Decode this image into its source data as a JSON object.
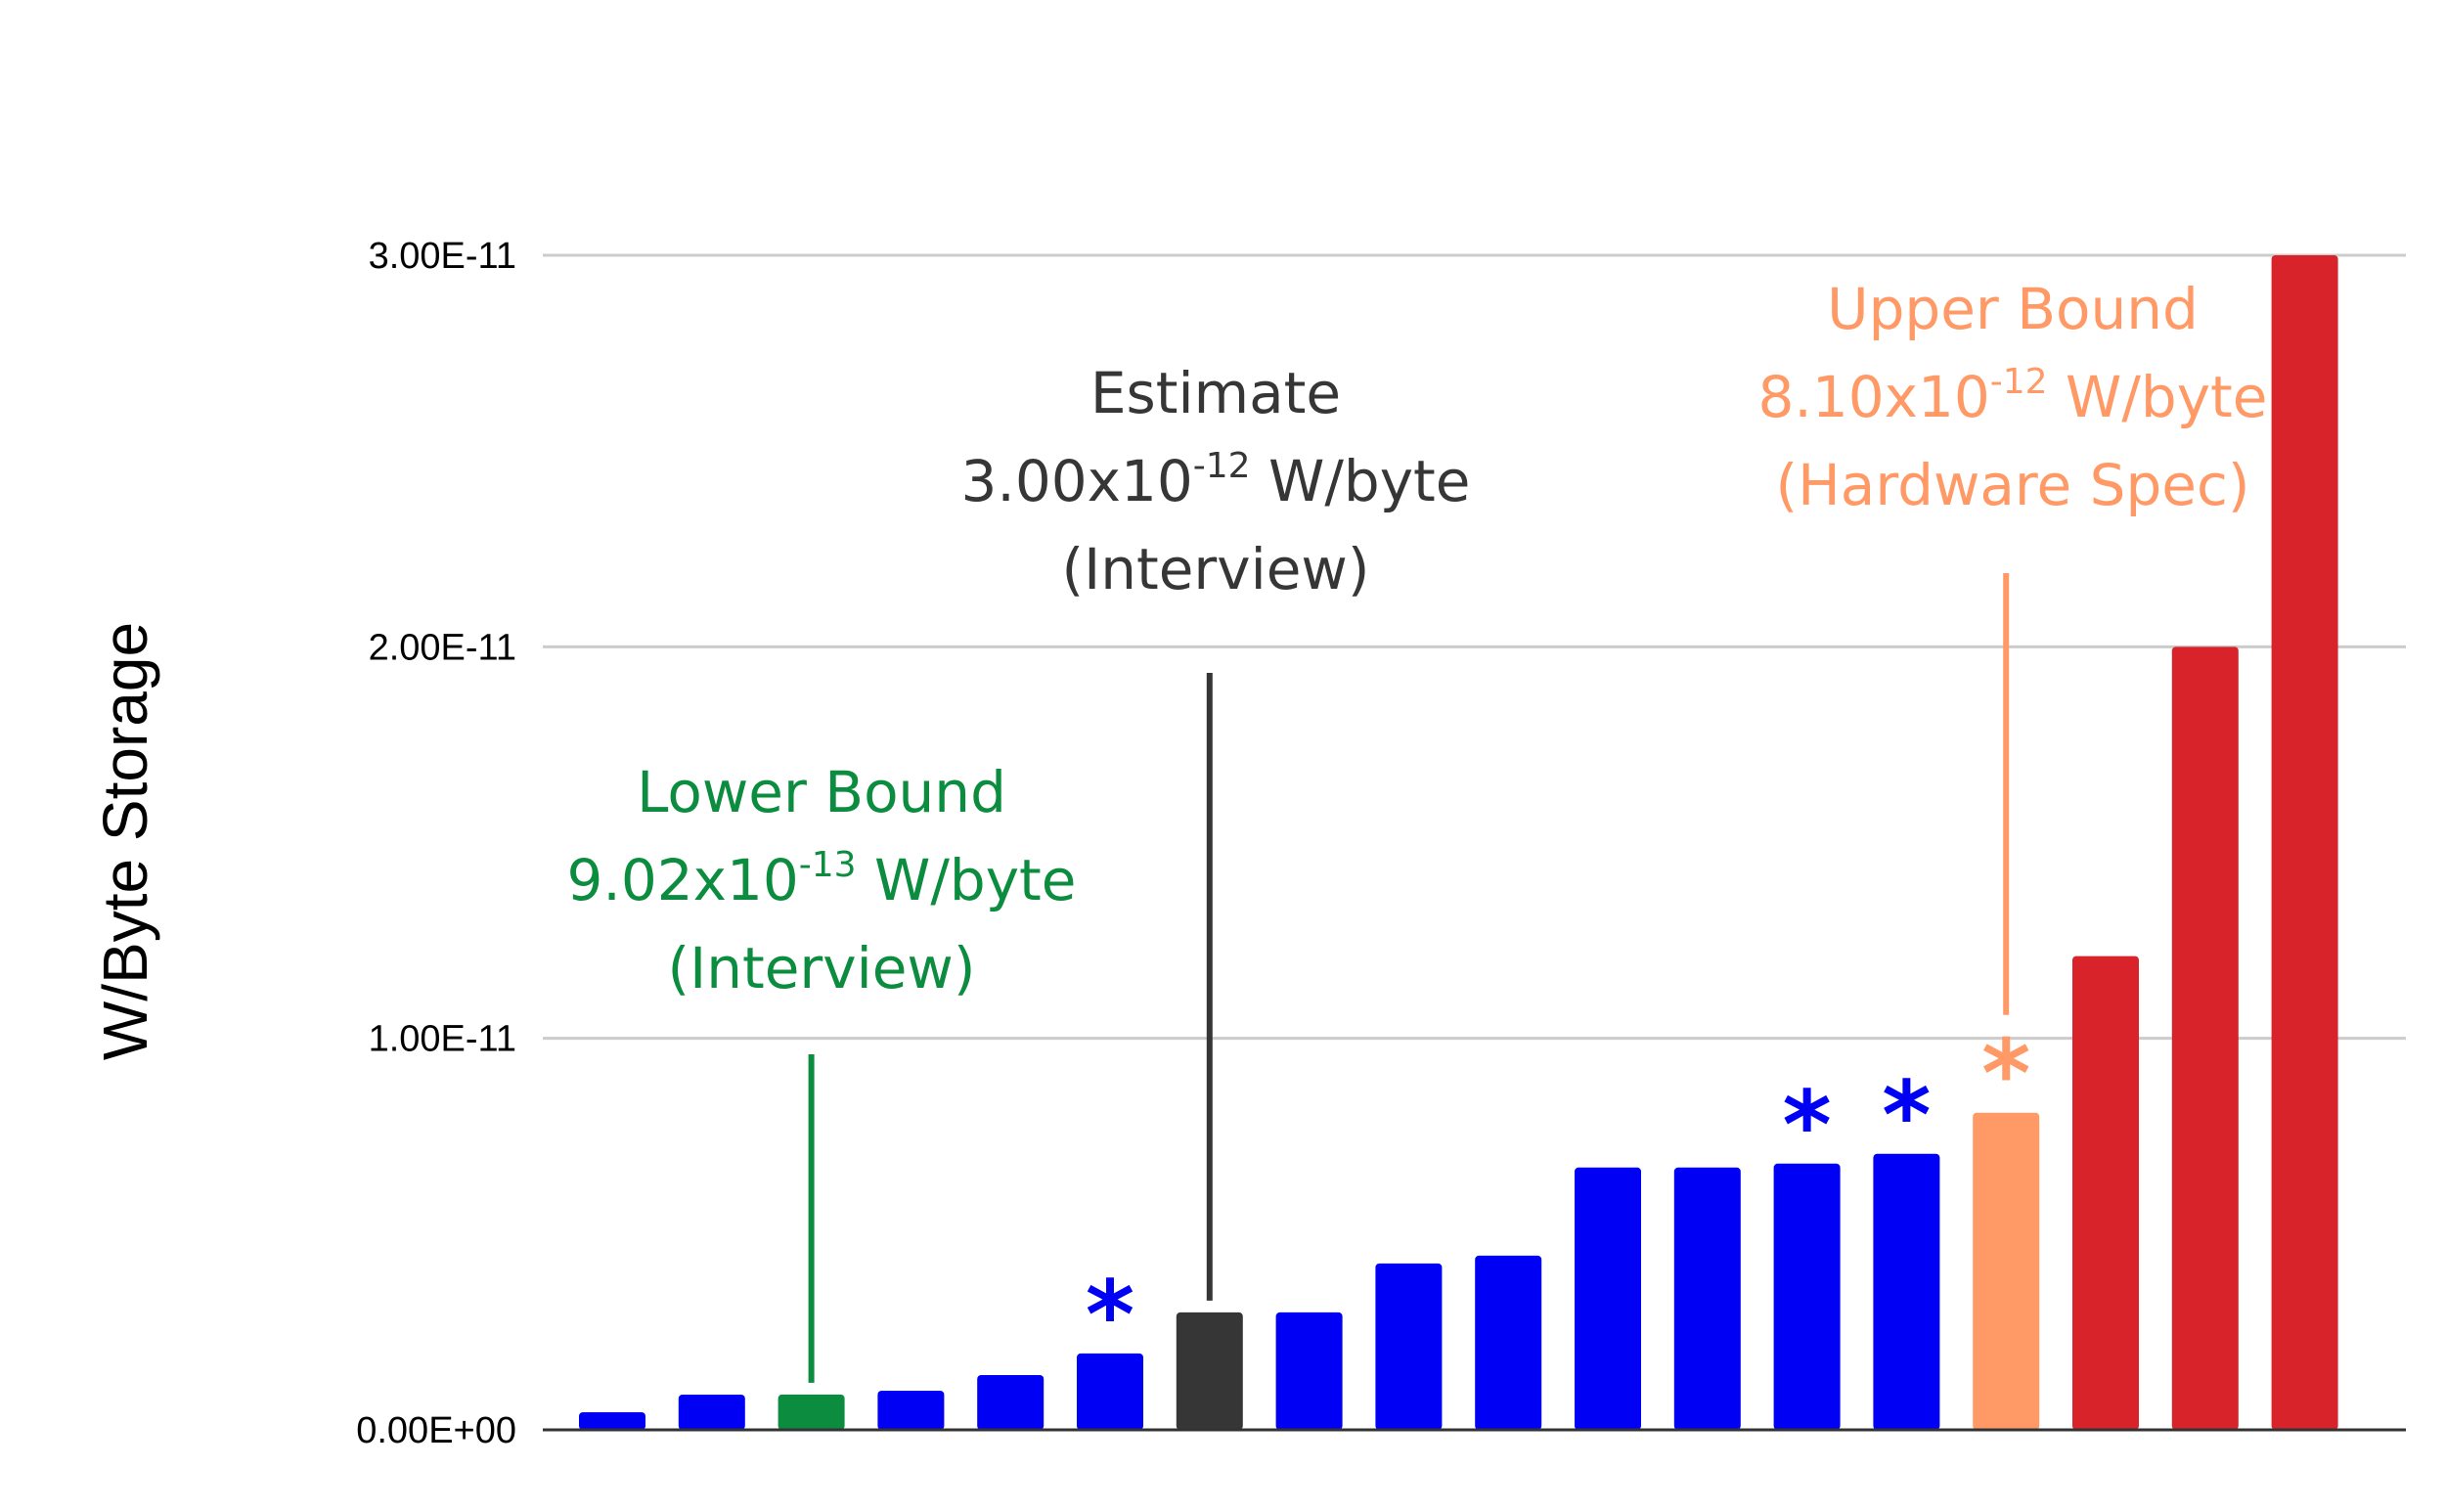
{
  "chart_data": {
    "type": "bar",
    "title": "",
    "ylabel": "W/Byte Storage",
    "xlabel": "",
    "ylim": [
      0,
      3e-11
    ],
    "yticks": [
      {
        "value": 0,
        "label": "0.00E+00"
      },
      {
        "value": 1e-11,
        "label": "1.00E-11"
      },
      {
        "value": 2e-11,
        "label": "2.00E-11"
      },
      {
        "value": 3e-11,
        "label": "3.00E-11"
      }
    ],
    "grid": true,
    "values": [
      4.5e-13,
      9e-13,
      9.02e-13,
      1e-12,
      1.4e-12,
      1.95e-12,
      3e-12,
      3e-12,
      4.25e-12,
      4.45e-12,
      6.7e-12,
      6.7e-12,
      6.8e-12,
      7.05e-12,
      8.1e-12,
      1.21e-11,
      2e-11,
      3e-11
    ],
    "colors": [
      "#0000f5",
      "#0000f5",
      "#0b8c3e",
      "#0000f5",
      "#0000f5",
      "#0000f5",
      "#363636",
      "#0000f5",
      "#0000f5",
      "#0000f5",
      "#0000f5",
      "#0000f5",
      "#0000f5",
      "#0000f5",
      "#ff9966",
      "#d9232a",
      "#d9232a",
      "#d9232a"
    ],
    "starred": [
      5,
      12,
      13,
      14
    ],
    "annotations": [
      {
        "bar": 2,
        "color": "#0b8c3e",
        "title": "Lower Bound",
        "base": "9.02x10",
        "exp": "-13",
        "unit": " W/byte",
        "source": "(Interview)"
      },
      {
        "bar": 6,
        "color": "#363636",
        "title": "Estimate",
        "base": "3.00x10",
        "exp": "-12",
        "unit": " W/byte",
        "source": "(Interview)"
      },
      {
        "bar": 14,
        "color": "#ff9966",
        "title": "Upper Bound",
        "base": "8.10x10",
        "exp": "-12",
        "unit": " W/byte",
        "source": "(Hardware Spec)"
      }
    ],
    "star_symbol": "*",
    "colors_theme": {
      "grid": "#cccccc",
      "axis": "#333333",
      "star_default": "#0000f5"
    }
  }
}
